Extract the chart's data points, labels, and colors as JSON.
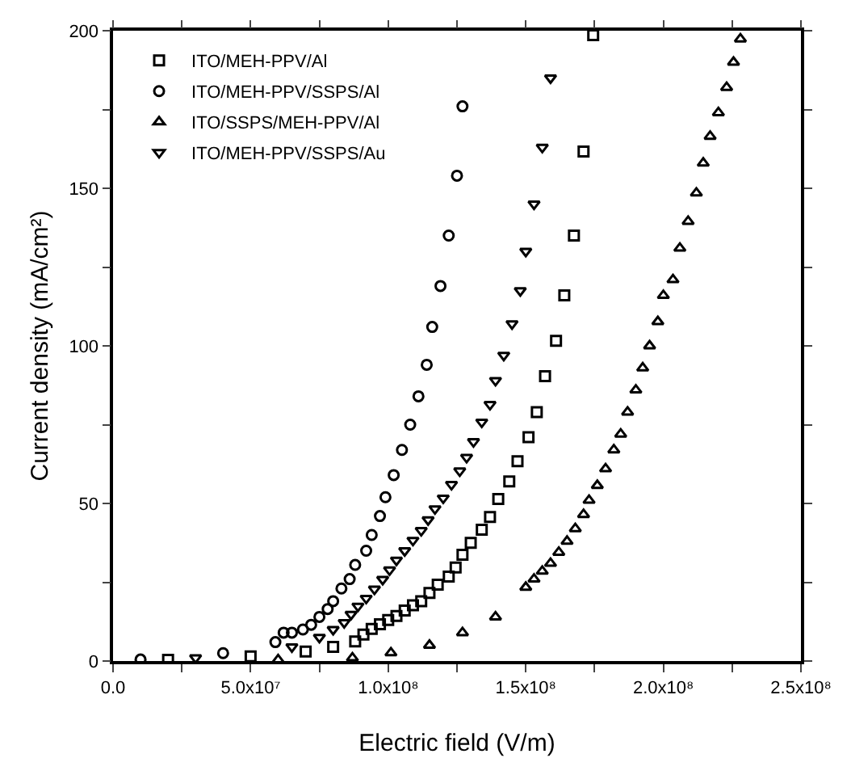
{
  "chart_data": {
    "type": "scatter",
    "xlabel": "Electric field (V/m)",
    "ylabel": "Current density (mA/cm²)",
    "xlim": [
      0,
      250000000.0
    ],
    "ylim": [
      0,
      200
    ],
    "xticks": [
      {
        "value": 0,
        "label": "0.0"
      },
      {
        "value": 25000000.0,
        "label": null
      },
      {
        "value": 50000000.0,
        "label": "5.0x10⁷"
      },
      {
        "value": 75000000.0,
        "label": null
      },
      {
        "value": 100000000.0,
        "label": "1.0x10⁸"
      },
      {
        "value": 125000000.0,
        "label": null
      },
      {
        "value": 150000000.0,
        "label": "1.5x10⁸"
      },
      {
        "value": 175000000.0,
        "label": null
      },
      {
        "value": 200000000.0,
        "label": "2.0x10⁸"
      },
      {
        "value": 225000000.0,
        "label": null
      },
      {
        "value": 250000000.0,
        "label": "2.5x10⁸"
      }
    ],
    "yticks": [
      0,
      {
        "value": 25,
        "label": null
      },
      50,
      {
        "value": 75,
        "label": null
      },
      100,
      {
        "value": 125,
        "label": null
      },
      150,
      {
        "value": 175,
        "label": null
      },
      200
    ],
    "grid": false,
    "legend": "top left",
    "series": [
      {
        "name": "ITO/MEH-PPV/Al",
        "color": "#000000",
        "marker": "square",
        "x": [
          20000000.0,
          50000000.0,
          70000000.0,
          80000000.0,
          88000000.0,
          91000000.0,
          94000000.0,
          97000000.0,
          100000000.0,
          103000000.0,
          106000000.0,
          109000000.0,
          112000000.0,
          115000000.0,
          118000000.0,
          122000000.0,
          124500000.0,
          127000000.0,
          130000000.0,
          134000000.0,
          137000000.0,
          140000000.0,
          144000000.0,
          147000000.0,
          151000000.0,
          154000000.0,
          157000000.0,
          161000000.0,
          164000000.0,
          167500000.0,
          171000000.0,
          174500000.0
        ],
        "values": [
          0.4,
          1.5,
          3,
          4.5,
          6.2,
          8.4,
          10.2,
          11.7,
          13,
          14.3,
          16,
          17.7,
          19,
          21.6,
          24.2,
          26.8,
          29.7,
          33.7,
          37.5,
          41.7,
          45.7,
          51.4,
          57,
          63.4,
          71,
          79,
          90.4,
          101.6,
          116,
          135,
          161.7,
          198.6
        ]
      },
      {
        "name": "ITO/MEH-PPV/SSPS/Al",
        "color": "#000000",
        "marker": "circle",
        "x": [
          10000000.0,
          40000000.0,
          59000000.0,
          62000000.0,
          65000000.0,
          69000000.0,
          72000000.0,
          75000000.0,
          78000000.0,
          80000000.0,
          83000000.0,
          86000000.0,
          88000000.0,
          92000000.0,
          94000000.0,
          97000000.0,
          99000000.0,
          102000000.0,
          105000000.0,
          108000000.0,
          111000000.0,
          114000000.0,
          116000000.0,
          119000000.0,
          122000000.0,
          125000000.0,
          127000000.0
        ],
        "values": [
          0.5,
          2.5,
          6,
          9,
          9,
          10,
          11.5,
          14,
          16.5,
          19,
          23,
          26,
          30.5,
          35,
          40,
          46,
          52,
          59,
          67,
          75,
          84,
          94,
          106,
          119,
          135,
          154,
          176
        ]
      },
      {
        "name": "ITO/SSPS/MEH-PPV/Al",
        "color": "#000000",
        "marker": "triangle",
        "x": [
          60000000.0,
          87000000.0,
          101000000.0,
          115000000.0,
          127000000.0,
          139000000.0,
          150000000.0,
          153000000.0,
          156000000.0,
          159000000.0,
          162000000.0,
          165000000.0,
          168000000.0,
          171000000.0,
          173000000.0,
          176000000.0,
          179000000.0,
          182000000.0,
          184500000.0,
          187000000.0,
          190000000.0,
          192500000.0,
          195000000.0,
          198000000.0,
          200000000.0,
          203500000.0,
          206000000.0,
          209000000.0,
          212000000.0,
          214500000.0,
          217000000.0,
          220000000.0,
          223000000.0,
          225500000.0,
          228000000.0
        ],
        "values": [
          0.4,
          1,
          2.6,
          5,
          9,
          14,
          23.4,
          26,
          28.5,
          31,
          34.5,
          38,
          42,
          46.5,
          51,
          55.7,
          61,
          67,
          72,
          79,
          86,
          93,
          100,
          107.7,
          116,
          121,
          131,
          139.5,
          148.5,
          158,
          166.5,
          174,
          182,
          190,
          197.4
        ]
      },
      {
        "name": "ITO/MEH-PPV/SSPS/Au",
        "color": "#000000",
        "marker": "triangle-down",
        "x": [
          30000000.0,
          65000000.0,
          75000000.0,
          80000000.0,
          84000000.0,
          86500000.0,
          89000000.0,
          92000000.0,
          95000000.0,
          98000000.0,
          100500000.0,
          103000000.0,
          106000000.0,
          109000000.0,
          112000000.0,
          114500000.0,
          117000000.0,
          120000000.0,
          123000000.0,
          126000000.0,
          128500000.0,
          131000000.0,
          134000000.0,
          137000000.0,
          139000000.0,
          142000000.0,
          145000000.0,
          148000000.0,
          150000000.0,
          153000000.0,
          156000000.0,
          159000000.0
        ],
        "values": [
          1,
          4.5,
          7.5,
          10,
          12.2,
          14.8,
          17.4,
          19.9,
          22.8,
          25.9,
          28.9,
          32,
          35,
          38.3,
          41.4,
          44.8,
          48.3,
          51.7,
          56,
          60.3,
          64.6,
          69.6,
          75.8,
          81.4,
          89,
          97,
          107,
          117.5,
          130,
          145,
          163,
          185
        ]
      }
    ]
  }
}
